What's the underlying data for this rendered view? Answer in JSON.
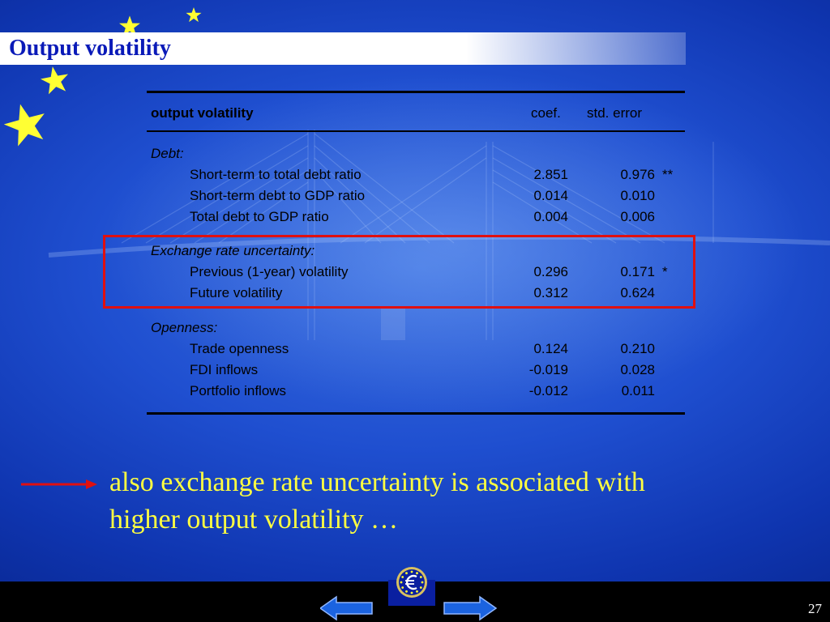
{
  "slide": {
    "title": "Output volatility",
    "page_number": "27"
  },
  "table": {
    "header": {
      "label": "output volatility",
      "coef": "coef.",
      "se": "std. error"
    },
    "groups": [
      {
        "category": "Debt:",
        "rows": [
          {
            "label": "Short-term to total debt ratio",
            "coef": "2.851",
            "se": "0.976",
            "sig": "**"
          },
          {
            "label": "Short-term debt to GDP ratio",
            "coef": "0.014",
            "se": "0.010",
            "sig": ""
          },
          {
            "label": "Total debt to GDP ratio",
            "coef": "0.004",
            "se": "0.006",
            "sig": ""
          }
        ]
      },
      {
        "category": "Exchange rate uncertainty:",
        "rows": [
          {
            "label": "Previous (1-year) volatility",
            "coef": "0.296",
            "se": "0.171",
            "sig": "*"
          },
          {
            "label": "Future volatility",
            "coef": "0.312",
            "se": "0.624",
            "sig": ""
          }
        ]
      },
      {
        "category": "Openness:",
        "rows": [
          {
            "label": "Trade openness",
            "coef": "0.124",
            "se": "0.210",
            "sig": ""
          },
          {
            "label": "FDI inflows",
            "coef": "-0.019",
            "se": "0.028",
            "sig": ""
          },
          {
            "label": "Portfolio inflows",
            "coef": "-0.012",
            "se": "0.011",
            "sig": ""
          }
        ]
      }
    ]
  },
  "conclusion": {
    "line1": "also exchange rate uncertainty is associated with",
    "line2": "higher output volatility …"
  },
  "colors": {
    "title": "#0a1ab8",
    "highlight": "#e01010",
    "conclusion": "#ffff40",
    "star": "#ffff33"
  },
  "icons": {
    "prev": "left-arrow-icon",
    "next": "right-arrow-icon",
    "logo": "euro-logo-icon",
    "callout": "red-arrow-icon"
  }
}
